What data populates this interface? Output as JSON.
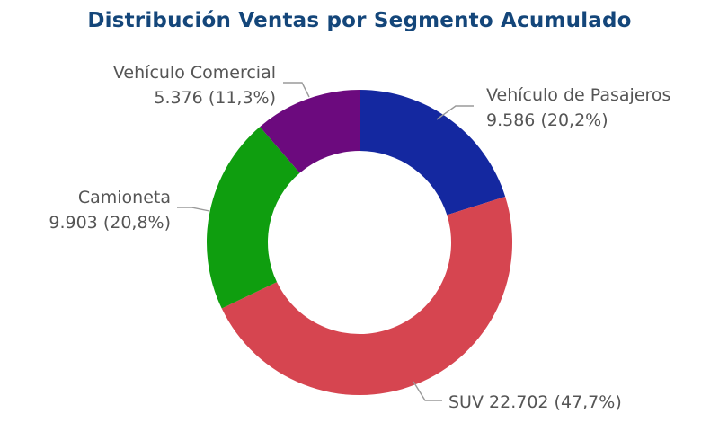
{
  "chart_data": {
    "type": "pie",
    "title": "Distribución Ventas por Segmento Acumulado",
    "donut": true,
    "start_angle_deg": 0,
    "direction": "clockwise",
    "slices": [
      {
        "name": "Vehículo de Pasajeros",
        "value": 9586,
        "value_label": "9.586",
        "percent_label": "(20,2%)",
        "color": "#1428a0"
      },
      {
        "name": "SUV",
        "value": 22702,
        "value_label": "22.702",
        "percent_label": "(47,7%)",
        "color": "#d64550"
      },
      {
        "name": "Camioneta",
        "value": 9903,
        "value_label": "9.903",
        "percent_label": "(20,8%)",
        "color": "#0f9e0f"
      },
      {
        "name": "Vehículo Comercial",
        "value": 5376,
        "value_label": "5.376",
        "percent_label": "(11,3%)",
        "color": "#6c0a7e"
      }
    ]
  }
}
